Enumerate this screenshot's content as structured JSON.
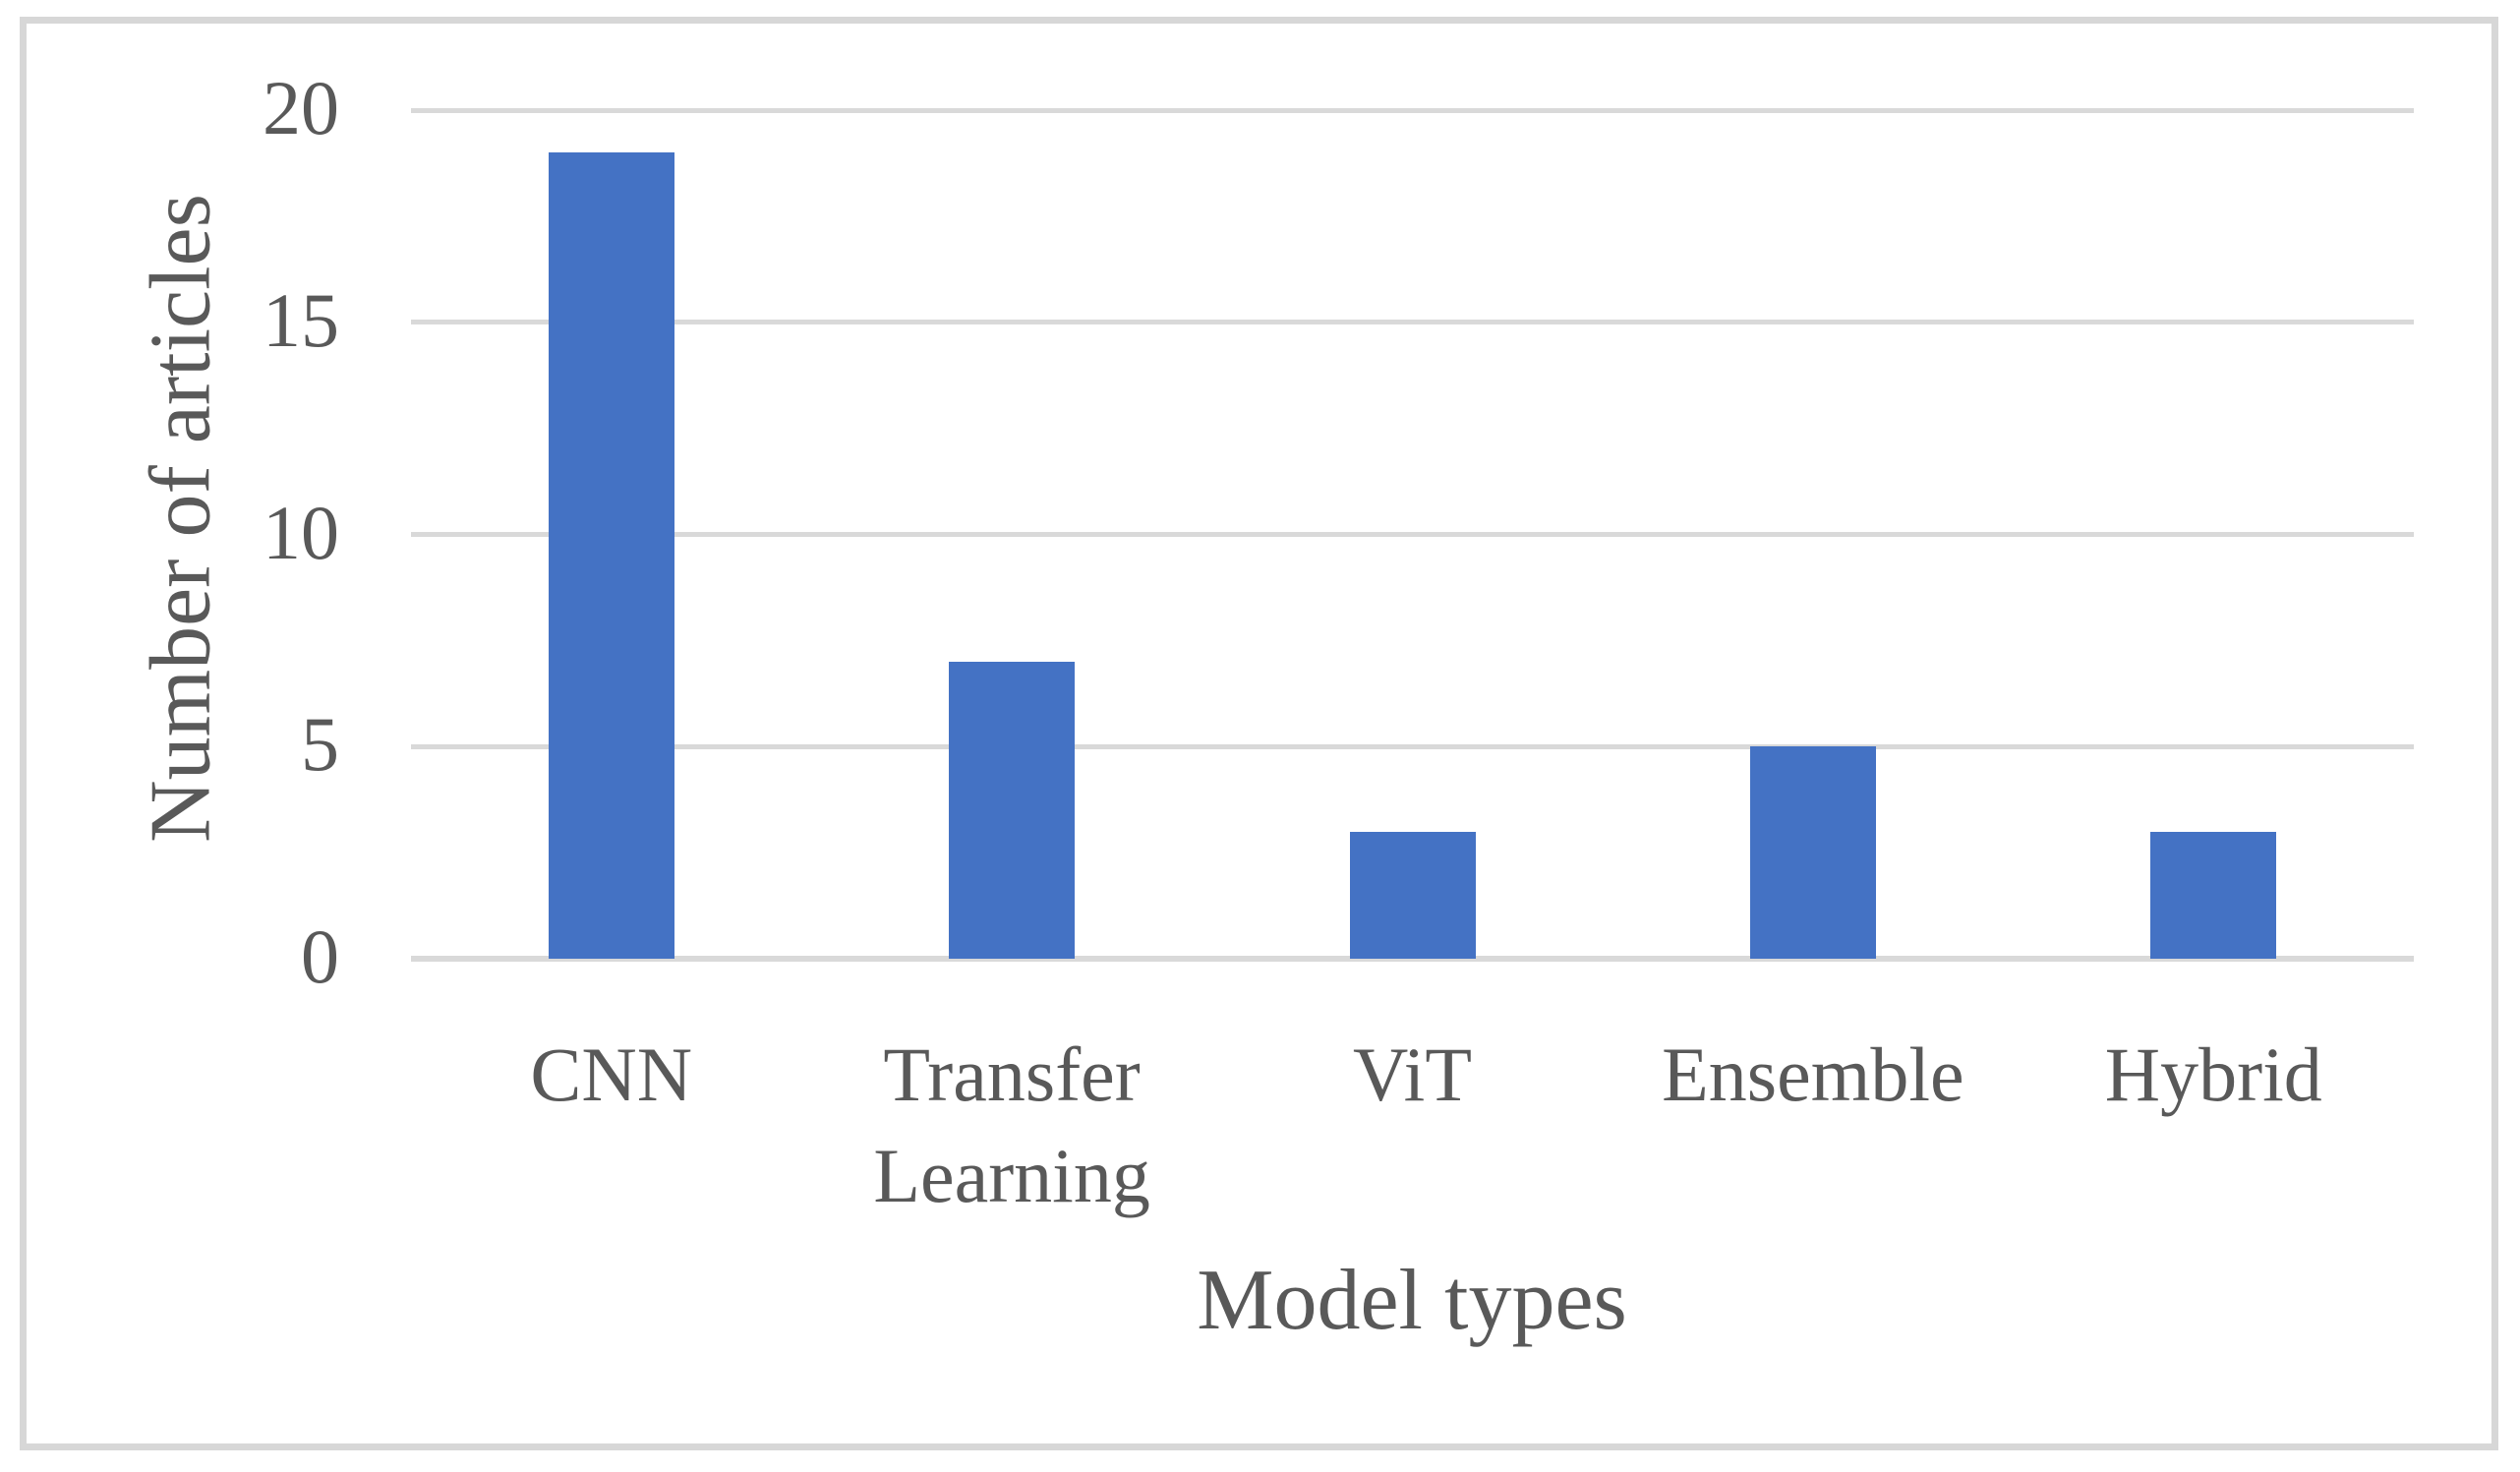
{
  "figure": {
    "background": "#FFFFFF",
    "frame_color": "#D7D7D7"
  },
  "chart_data": {
    "type": "bar",
    "title": "",
    "categories": [
      "CNN",
      "Transfer Learning",
      "ViT",
      "Ensemble",
      "Hybrid"
    ],
    "values": [
      19,
      7,
      3,
      5,
      3
    ],
    "xlabel": "Model types",
    "ylabel": "Number of articles",
    "ylim": [
      0,
      20
    ],
    "yticks": [
      0,
      5,
      10,
      15,
      20
    ],
    "grid": "horizontal gridlines on",
    "legend_position": "none",
    "bar_color": "#4472C4",
    "gridline_color": "#D9D9D9",
    "axis_line_color": "#D9D9D9",
    "text_color": "#595959"
  }
}
